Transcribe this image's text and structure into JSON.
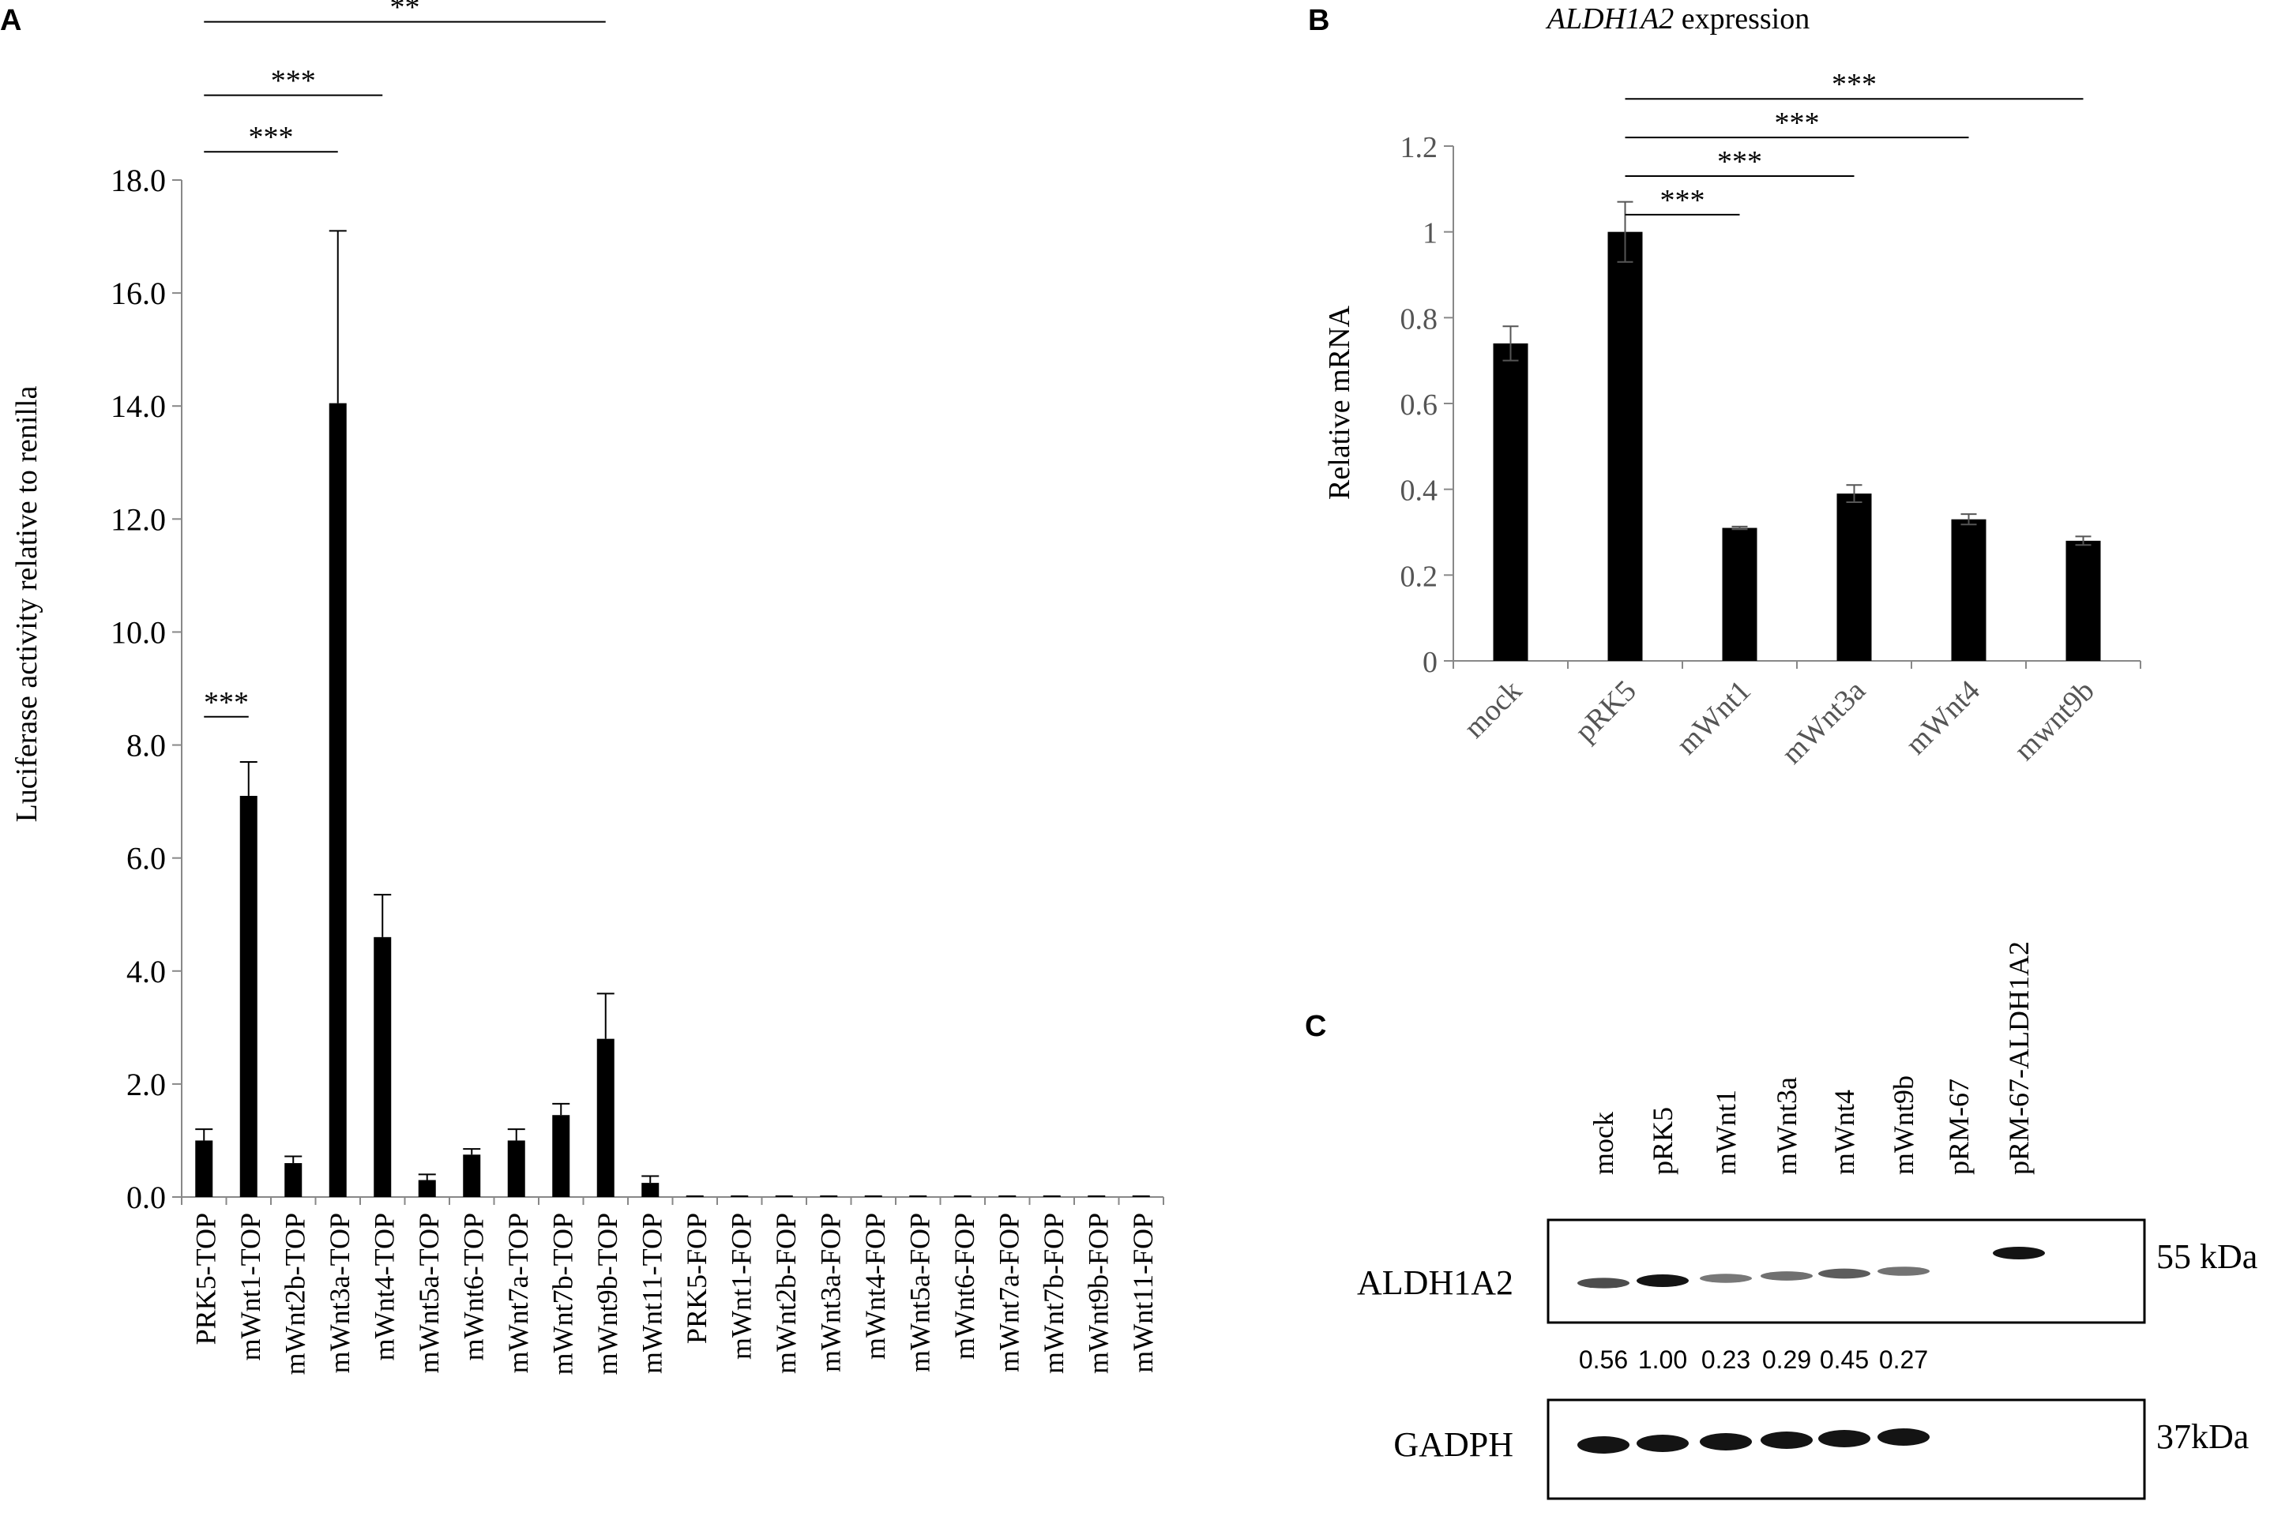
{
  "chart_data": [
    {
      "panel": "A",
      "type": "bar",
      "title": "",
      "xlabel": "",
      "ylabel": "Luciferase activity relative to renilla",
      "ylim": [
        0,
        18
      ],
      "yticks": [
        "0.0",
        "2.0",
        "4.0",
        "6.0",
        "8.0",
        "10.0",
        "12.0",
        "14.0",
        "16.0",
        "18.0"
      ],
      "grid": false,
      "categories": [
        "PRK5-TOP",
        "mWnt1-TOP",
        "mWnt2b-TOP",
        "mWnt3a-TOP",
        "mWnt4-TOP",
        "mWnt5a-TOP",
        "mWnt6-TOP",
        "mWnt7a-TOP",
        "mWnt7b-TOP",
        "mWnt9b-TOP",
        "mWnt11-TOP",
        "PRK5-FOP",
        "mWnt1-FOP",
        "mWnt2b-FOP",
        "mWnt3a-FOP",
        "mWnt4-FOP",
        "mWnt5a-FOP",
        "mWnt6-FOP",
        "mWnt7a-FOP",
        "mWnt7b-FOP",
        "mWnt9b-FOP",
        "mWnt11-FOP"
      ],
      "values": [
        1.0,
        7.1,
        0.6,
        14.05,
        4.6,
        0.3,
        0.75,
        1.0,
        1.45,
        2.8,
        0.25,
        0.01,
        0.01,
        0.01,
        0.01,
        0.01,
        0.01,
        0.01,
        0.01,
        0.01,
        0.02,
        0.01
      ],
      "errors": [
        0.2,
        0.6,
        0.12,
        3.05,
        0.75,
        0.1,
        0.1,
        0.2,
        0.2,
        0.8,
        0.12,
        0,
        0,
        0,
        0,
        0,
        0,
        0,
        0,
        0,
        0,
        0
      ],
      "significance": [
        {
          "from": 0,
          "to": 1,
          "label": "***",
          "level": 8.5
        },
        {
          "from": 0,
          "to": 3,
          "label": "***",
          "level": 18.5
        },
        {
          "from": 0,
          "to": 4,
          "label": "***",
          "level": 19.5
        },
        {
          "from": 0,
          "to": 9,
          "label": "**",
          "level": 20.8
        }
      ]
    },
    {
      "panel": "B",
      "type": "bar",
      "title": "ALDH1A2 expression",
      "xlabel": "",
      "ylabel": "Relative mRNA",
      "ylim": [
        0,
        1.2
      ],
      "yticks": [
        "0",
        "0.2",
        "0.4",
        "0.6",
        "0.8",
        "1",
        "1.2"
      ],
      "grid": false,
      "categories": [
        "mock",
        "pRK5",
        "mWnt1",
        "mWnt3a",
        "mWnt4",
        "mwnt9b"
      ],
      "values": [
        0.74,
        1.0,
        0.31,
        0.39,
        0.33,
        0.28
      ],
      "errors": [
        0.04,
        0.07,
        0.003,
        0.02,
        0.012,
        0.01
      ],
      "significance": [
        {
          "from": 1,
          "to": 2,
          "label": "***",
          "level": 1.04
        },
        {
          "from": 1,
          "to": 3,
          "label": "***",
          "level": 1.13
        },
        {
          "from": 1,
          "to": 4,
          "label": "***",
          "level": 1.22
        },
        {
          "from": 1,
          "to": 5,
          "label": "***",
          "level": 1.31
        }
      ]
    }
  ],
  "panel_a": {
    "label": "A"
  },
  "panel_b": {
    "label": "B",
    "title_gene": "ALDH1A2",
    "title_rest": " expression"
  },
  "panel_c": {
    "label": "C",
    "lanes": [
      "mock",
      "pRK5",
      "mWnt1",
      "mWnt3a",
      "mWnt4",
      "mWnt9b",
      "pRM-67",
      "pRM-67-ALDH1A2"
    ],
    "blots": [
      {
        "name": "ALDH1A2",
        "size": "55 kDa",
        "intensities": [
          0.56,
          1.0,
          0.23,
          0.29,
          0.45,
          0.27,
          0,
          1.0
        ]
      },
      {
        "name": "GADPH",
        "size": "37kDa",
        "intensities": [
          1,
          1,
          1,
          1,
          1,
          1,
          0,
          0
        ]
      }
    ],
    "quantification": [
      "0.56",
      "1.00",
      "0.23",
      "0.29",
      "0.45",
      "0.27"
    ]
  }
}
